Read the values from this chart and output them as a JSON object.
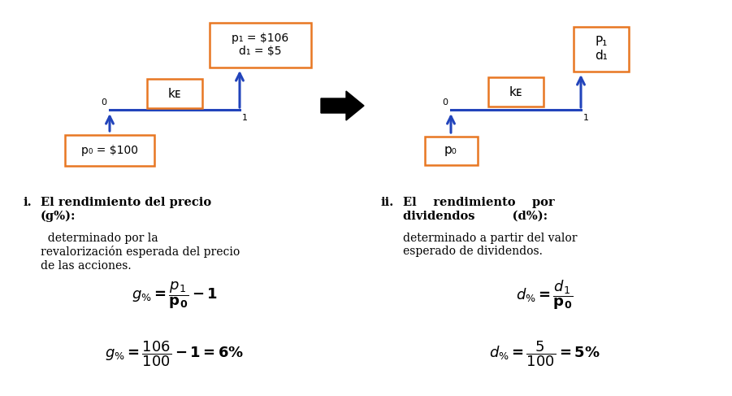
{
  "bg_color": "#ffffff",
  "orange_color": "#E87722",
  "blue_color": "#2244BB",
  "black_color": "#000000",
  "d1_p0_text": "p₀ = $100",
  "d1_p1_text": "p₁ = $106\nd₁ = $5",
  "d1_ke_text": "kᴇ",
  "d2_p0_text": "p₀",
  "d2_p1_text": "P₁\nd₁",
  "d2_ke_text": "kᴇ",
  "t0": "0",
  "t1": "1",
  "roman_i": "i.",
  "roman_ii": "ii.",
  "bold_i": "El rendimiento del precio (g%):",
  "normal_i": "determinado por la\nrevalorización esperada del precio\nde las acciones.",
  "bold_ii_1": "El    rendimiento    por",
  "bold_ii_2": "dividendos         (d%):",
  "normal_ii": "determinado a partir del valor\nesperado de dividendos."
}
